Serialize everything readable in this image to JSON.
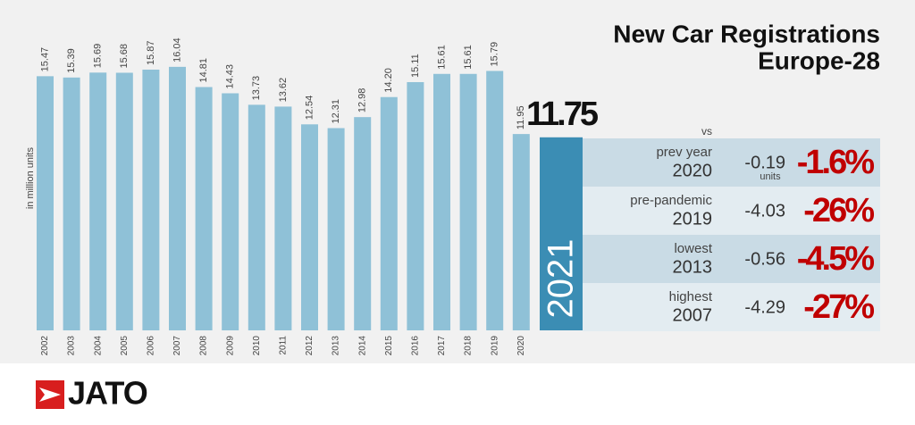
{
  "chart_data": {
    "type": "bar",
    "title": "New Car Registrations",
    "subtitle": "Europe-28",
    "ylabel": "in million units",
    "categories": [
      "2002",
      "2003",
      "2004",
      "2005",
      "2006",
      "2007",
      "2008",
      "2009",
      "2010",
      "2011",
      "2012",
      "2013",
      "2014",
      "2015",
      "2016",
      "2017",
      "2018",
      "2019",
      "2020"
    ],
    "values": [
      15.47,
      15.39,
      15.69,
      15.68,
      15.87,
      16.04,
      14.81,
      14.43,
      13.73,
      13.62,
      12.54,
      12.31,
      12.98,
      14.2,
      15.11,
      15.61,
      15.61,
      15.79,
      11.95
    ],
    "value_labels": [
      "15.47",
      "15.39",
      "15.69",
      "15.68",
      "15.87",
      "16.04",
      "14.81",
      "14.43",
      "13.73",
      "13.62",
      "12.54",
      "12.31",
      "12.98",
      "14.20",
      "15.11",
      "15.61",
      "15.61",
      "15.79",
      "11.95"
    ],
    "color": "#8fc1d7",
    "highlight": {
      "category": "2021",
      "value": 11.75,
      "color": "#3b8db4"
    },
    "comparison": {
      "header": "vs",
      "unit_label": "units",
      "rows": [
        {
          "label": "prev year",
          "year": "2020",
          "diff": -0.19,
          "pct": "-1.6%"
        },
        {
          "label": "pre-pandemic",
          "year": "2019",
          "diff": -4.03,
          "pct": "-26%"
        },
        {
          "label": "lowest",
          "year": "2013",
          "diff": -0.56,
          "pct": "-4.5%"
        },
        {
          "label": "highest",
          "year": "2007",
          "diff": -4.29,
          "pct": "-27%"
        }
      ]
    }
  },
  "logo": "JATO"
}
